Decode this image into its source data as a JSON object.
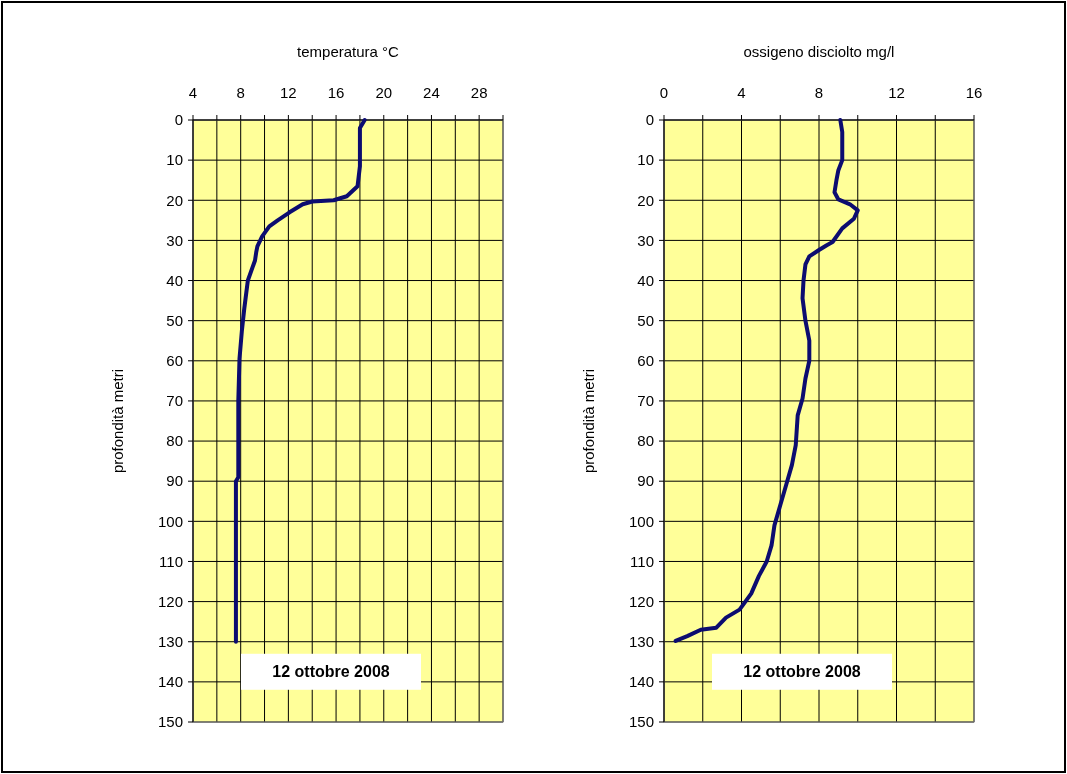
{
  "chart_data": [
    {
      "type": "line",
      "xlabel": "temperatura °C",
      "ylabel": "profondità metri",
      "xlim": [
        4,
        30
      ],
      "xticks": [
        4,
        {
          "value": 6,
          "label": null
        },
        8,
        {
          "value": 10,
          "label": null
        },
        12,
        {
          "value": 14,
          "label": null
        },
        16,
        {
          "value": 18,
          "label": null
        },
        20,
        {
          "value": 22,
          "label": null
        },
        24,
        {
          "value": 26,
          "label": null
        },
        28,
        {
          "value": 30,
          "label": null
        }
      ],
      "ylim": [
        150,
        0
      ],
      "yticks": [
        0,
        10,
        20,
        30,
        40,
        50,
        60,
        70,
        80,
        90,
        100,
        110,
        120,
        130,
        140,
        150
      ],
      "grid": true,
      "annotations": [
        "12 ottobre 2008"
      ],
      "series": [
        {
          "color": "#0c0c70",
          "x": [
            18.4,
            18.0,
            18.0,
            17.8,
            16.9,
            15.8,
            14.0,
            13.2,
            12.1,
            11.1,
            10.4,
            9.8,
            9.4,
            9.3,
            9.2,
            8.6,
            8.3,
            8.1,
            7.9,
            7.8,
            7.8,
            7.6,
            7.6
          ],
          "values": [
            0,
            2,
            11.5,
            16.5,
            19,
            20,
            20.3,
            21,
            23,
            25,
            26.5,
            29,
            31.5,
            33,
            35,
            40,
            47,
            52.5,
            59.5,
            70,
            89,
            90,
            130
          ]
        }
      ]
    },
    {
      "type": "line",
      "xlabel": "ossigeno disciolto mg/l",
      "ylabel": "profondità metri",
      "xlim": [
        0,
        16
      ],
      "xticks": [
        0,
        {
          "value": 2,
          "label": null
        },
        4,
        {
          "value": 6,
          "label": null
        },
        8,
        {
          "value": 10,
          "label": null
        },
        12,
        {
          "value": 14,
          "label": null
        },
        16
      ],
      "ylim": [
        150,
        0
      ],
      "yticks": [
        0,
        10,
        20,
        30,
        40,
        50,
        60,
        70,
        80,
        90,
        100,
        110,
        120,
        130,
        140,
        150
      ],
      "grid": true,
      "annotations": [
        "12 ottobre 2008"
      ],
      "series": [
        {
          "color": "#0c0c70",
          "x": [
            9.1,
            9.2,
            9.2,
            9.0,
            8.9,
            8.8,
            9.0,
            9.6,
            10.0,
            9.8,
            9.2,
            8.7,
            8.4,
            8.0,
            7.5,
            7.3,
            7.2,
            7.15,
            7.3,
            7.5,
            7.5,
            7.3,
            7.15,
            6.9,
            6.8,
            6.6,
            6.3,
            6.0,
            5.7,
            5.55,
            5.3,
            4.9,
            4.5,
            3.9,
            3.2,
            2.7,
            1.9,
            1.2,
            0.6
          ],
          "values": [
            0,
            3,
            10,
            12.5,
            15,
            18,
            19.8,
            21,
            22.5,
            24.6,
            27,
            30.4,
            31.2,
            32.4,
            34,
            36,
            40,
            44.4,
            50,
            55,
            60,
            64.4,
            69.4,
            73.6,
            81,
            86,
            91,
            96,
            101,
            106,
            110,
            113.6,
            118,
            122,
            124,
            126.5,
            127,
            128.6,
            129.8
          ]
        }
      ]
    }
  ]
}
